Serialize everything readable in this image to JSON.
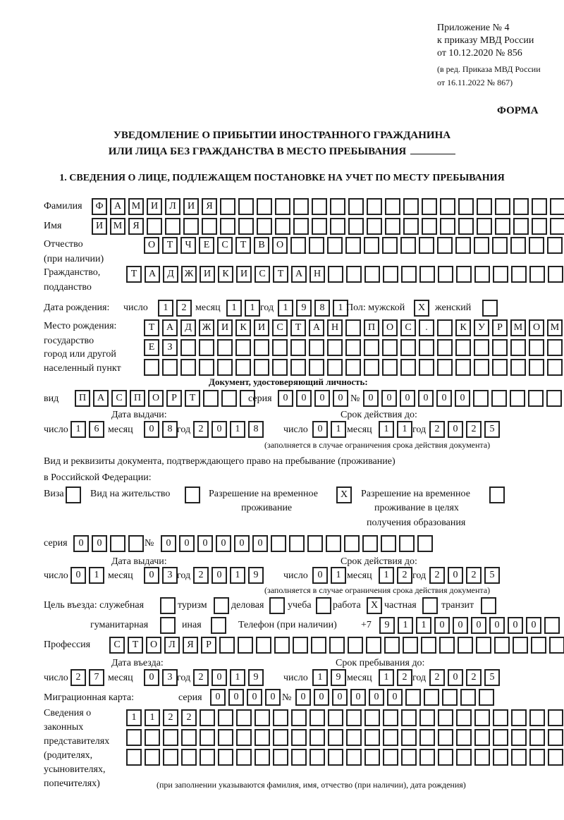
{
  "header": {
    "appendix": [
      "Приложение № 4",
      "к приказу МВД России",
      "от 10.12.2020 № 856"
    ],
    "edition": [
      "(в ред. Приказа МВД России",
      "от 16.11.2022 № 867)"
    ],
    "form_label": "ФОРМА",
    "title_line1": "УВЕДОМЛЕНИЕ О ПРИБЫТИИ ИНОСТРАННОГО ГРАЖДАНИНА",
    "title_line2": "ИЛИ ЛИЦА БЕЗ ГРАЖДАНСТВА В МЕСТО ПРЕБЫВАНИЯ",
    "section1": "1. СВЕДЕНИЯ О ЛИЦЕ, ПОДЛЕЖАЩЕМ ПОСТАНОВКЕ НА УЧЕТ ПО МЕСТУ ПРЕБЫВАНИЯ"
  },
  "labels": {
    "surname": "Фамилия",
    "name": "Имя",
    "patronymic": [
      "Отчество",
      "(при наличии)"
    ],
    "citizenship": [
      "Гражданство,",
      "подданство"
    ],
    "birth_date": "Дата рождения:",
    "day": "число",
    "month": "месяц",
    "year": "год",
    "sex": "Пол: мужской",
    "female": "женский",
    "birth_place": [
      "Место рождения:",
      "государство",
      "город или другой",
      "населенный пункт"
    ],
    "id_doc": "Документ, удостоверяющий личность:",
    "kind": "вид",
    "series": "серия",
    "number": "№",
    "issue_date": "Дата выдачи:",
    "valid_until": "Срок действия до:",
    "valid_note": "(заполняется в случае ограничения срока действия документа)",
    "right_doc": [
      "Вид и реквизиты документа, подтверждающего право на пребывание (проживание)",
      "в Российской Федерации:"
    ],
    "visa": "Виза",
    "residence_permit": "Вид на жительство",
    "temp_residence": [
      "Разрешение на временное",
      "проживание"
    ],
    "temp_residence_edu": [
      "Разрешение на временное",
      "проживание в целях",
      "получения образования"
    ],
    "purpose": "Цель въезда: служебная",
    "tourism": "туризм",
    "business": "деловая",
    "study": "учеба",
    "work": "работа",
    "private": "частная",
    "transit": "транзит",
    "humanitarian": "гуманитарная",
    "other": "иная",
    "phone": "Телефон (при наличии)",
    "phone_prefix": "+7",
    "profession": "Профессия",
    "entry_date": "Дата въезда:",
    "stay_until": "Срок пребывания до:",
    "migration_card": "Миграционная карта:",
    "representatives": [
      "Сведения о",
      "законных",
      "представителях",
      "(родителях,",
      "усыновителях,",
      "попечителях)"
    ],
    "representatives_note": "(при заполнении указываются фамилия, имя, отчество (при наличии), дата рождения)"
  },
  "fields": {
    "surname": "ФАМИЛИЯ",
    "name": "ИМЯ",
    "patronymic": "ОТЧЕСТВО",
    "citizenship": "ТАДЖИКИСТАН",
    "birth_day": "12",
    "birth_month": "11",
    "birth_year": "1981",
    "sex_male": "X",
    "sex_female": "",
    "birth_place_1": "ТАДЖИКИСТАН ПОС. КУРМОМБ",
    "birth_place_2": "ЕЗ",
    "birth_place_3": "",
    "id_kind": "ПАСПОРТ",
    "id_series": "0000",
    "id_number": "000000",
    "id_issue_day": "16",
    "id_issue_month": "08",
    "id_issue_year": "2018",
    "id_valid_day": "01",
    "id_valid_month": "11",
    "id_valid_year": "2025",
    "visa": "",
    "residence_permit": "",
    "temp_residence": "X",
    "temp_residence_edu": "",
    "right_series": "00",
    "right_number": "000000",
    "right_issue_day": "01",
    "right_issue_month": "03",
    "right_issue_year": "2019",
    "right_valid_day": "01",
    "right_valid_month": "12",
    "right_valid_year": "2025",
    "purpose_official": "",
    "purpose_tourism": "",
    "purpose_business": "",
    "purpose_study": "",
    "purpose_work": "X",
    "purpose_private": "",
    "purpose_transit": "",
    "purpose_humanitarian": "",
    "purpose_other": "",
    "phone": "911000000",
    "profession": "СТОЛЯР",
    "entry_day": "27",
    "entry_month": "03",
    "entry_year": "2019",
    "stay_day": "19",
    "stay_month": "12",
    "stay_year": "2025",
    "mc_series": "0000",
    "mc_number": "000000",
    "representatives_1": "1122",
    "representatives_2": "",
    "representatives_3": ""
  }
}
